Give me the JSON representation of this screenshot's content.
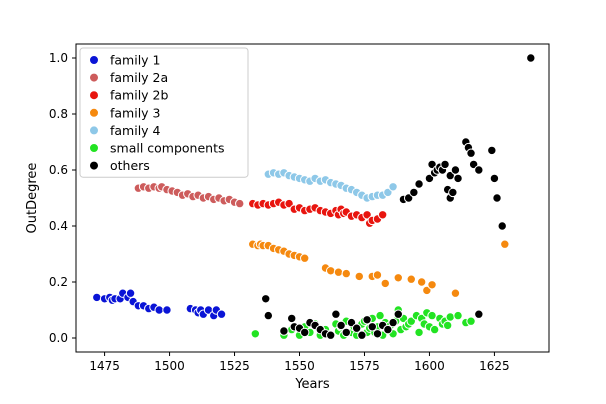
{
  "chart_data": {
    "type": "scatter",
    "xlabel": "Years",
    "ylabel": "OutDegree",
    "xlim": [
      1464,
      1646
    ],
    "ylim": [
      -0.05,
      1.05
    ],
    "xticks": [
      1475,
      1500,
      1525,
      1550,
      1575,
      1600,
      1625
    ],
    "yticks": [
      0.0,
      0.2,
      0.4,
      0.6,
      0.8,
      1.0
    ],
    "xtick_labels": [
      "1475",
      "1500",
      "1525",
      "1550",
      "1575",
      "1600",
      "1625"
    ],
    "ytick_labels": [
      "0.0",
      "0.2",
      "0.4",
      "0.6",
      "0.8",
      "1.0"
    ],
    "grid": false,
    "legend_position": "top-left",
    "series": [
      {
        "name": "family 1",
        "color": "#0a14d6",
        "points": [
          [
            1472,
            0.145
          ],
          [
            1475,
            0.14
          ],
          [
            1477,
            0.145
          ],
          [
            1478,
            0.135
          ],
          [
            1479,
            0.14
          ],
          [
            1481,
            0.14
          ],
          [
            1482,
            0.16
          ],
          [
            1484,
            0.145
          ],
          [
            1485,
            0.16
          ],
          [
            1486,
            0.13
          ],
          [
            1488,
            0.115
          ],
          [
            1490,
            0.115
          ],
          [
            1492,
            0.105
          ],
          [
            1494,
            0.11
          ],
          [
            1496,
            0.1
          ],
          [
            1499,
            0.1
          ],
          [
            1508,
            0.105
          ],
          [
            1510,
            0.1
          ],
          [
            1511,
            0.09
          ],
          [
            1512,
            0.1
          ],
          [
            1513,
            0.085
          ],
          [
            1515,
            0.1
          ],
          [
            1517,
            0.08
          ],
          [
            1518,
            0.1
          ],
          [
            1520,
            0.085
          ]
        ]
      },
      {
        "name": "family 2a",
        "color": "#cd5c5c",
        "points": [
          [
            1488,
            0.535
          ],
          [
            1490,
            0.54
          ],
          [
            1492,
            0.535
          ],
          [
            1494,
            0.54
          ],
          [
            1496,
            0.535
          ],
          [
            1497,
            0.54
          ],
          [
            1499,
            0.53
          ],
          [
            1501,
            0.525
          ],
          [
            1503,
            0.52
          ],
          [
            1505,
            0.51
          ],
          [
            1507,
            0.515
          ],
          [
            1509,
            0.505
          ],
          [
            1511,
            0.51
          ],
          [
            1513,
            0.5
          ],
          [
            1515,
            0.505
          ],
          [
            1517,
            0.495
          ],
          [
            1519,
            0.5
          ],
          [
            1521,
            0.49
          ],
          [
            1523,
            0.495
          ],
          [
            1525,
            0.485
          ],
          [
            1527,
            0.48
          ]
        ]
      },
      {
        "name": "family 2b",
        "color": "#e8150f",
        "points": [
          [
            1532,
            0.48
          ],
          [
            1534,
            0.475
          ],
          [
            1536,
            0.48
          ],
          [
            1538,
            0.475
          ],
          [
            1540,
            0.48
          ],
          [
            1542,
            0.485
          ],
          [
            1544,
            0.475
          ],
          [
            1546,
            0.48
          ],
          [
            1548,
            0.46
          ],
          [
            1550,
            0.465
          ],
          [
            1552,
            0.455
          ],
          [
            1554,
            0.46
          ],
          [
            1556,
            0.465
          ],
          [
            1558,
            0.455
          ],
          [
            1560,
            0.45
          ],
          [
            1562,
            0.445
          ],
          [
            1564,
            0.455
          ],
          [
            1565,
            0.44
          ],
          [
            1566,
            0.46
          ],
          [
            1567,
            0.445
          ],
          [
            1568,
            0.45
          ],
          [
            1570,
            0.435
          ],
          [
            1572,
            0.44
          ],
          [
            1574,
            0.43
          ],
          [
            1576,
            0.44
          ],
          [
            1577,
            0.41
          ],
          [
            1578,
            0.42
          ],
          [
            1580,
            0.425
          ],
          [
            1582,
            0.44
          ]
        ]
      },
      {
        "name": "family 3",
        "color": "#f5890f",
        "points": [
          [
            1532,
            0.335
          ],
          [
            1534,
            0.33
          ],
          [
            1535,
            0.335
          ],
          [
            1536,
            0.33
          ],
          [
            1538,
            0.33
          ],
          [
            1540,
            0.32
          ],
          [
            1542,
            0.315
          ],
          [
            1544,
            0.31
          ],
          [
            1546,
            0.3
          ],
          [
            1548,
            0.295
          ],
          [
            1550,
            0.29
          ],
          [
            1552,
            0.285
          ],
          [
            1560,
            0.25
          ],
          [
            1562,
            0.24
          ],
          [
            1565,
            0.235
          ],
          [
            1568,
            0.23
          ],
          [
            1573,
            0.22
          ],
          [
            1578,
            0.22
          ],
          [
            1580,
            0.225
          ],
          [
            1583,
            0.195
          ],
          [
            1588,
            0.215
          ],
          [
            1593,
            0.21
          ],
          [
            1597,
            0.2
          ],
          [
            1599,
            0.17
          ],
          [
            1601,
            0.19
          ],
          [
            1610,
            0.16
          ],
          [
            1629,
            0.335
          ]
        ]
      },
      {
        "name": "family 4",
        "color": "#8ec8e8",
        "points": [
          [
            1538,
            0.585
          ],
          [
            1540,
            0.59
          ],
          [
            1542,
            0.585
          ],
          [
            1544,
            0.59
          ],
          [
            1546,
            0.58
          ],
          [
            1548,
            0.575
          ],
          [
            1550,
            0.57
          ],
          [
            1552,
            0.565
          ],
          [
            1554,
            0.56
          ],
          [
            1556,
            0.57
          ],
          [
            1558,
            0.56
          ],
          [
            1560,
            0.565
          ],
          [
            1562,
            0.555
          ],
          [
            1564,
            0.55
          ],
          [
            1566,
            0.545
          ],
          [
            1568,
            0.535
          ],
          [
            1570,
            0.53
          ],
          [
            1572,
            0.52
          ],
          [
            1574,
            0.51
          ],
          [
            1576,
            0.5
          ],
          [
            1578,
            0.505
          ],
          [
            1580,
            0.51
          ],
          [
            1582,
            0.51
          ],
          [
            1584,
            0.52
          ],
          [
            1586,
            0.54
          ]
        ]
      },
      {
        "name": "small components",
        "color": "#22e322",
        "points": [
          [
            1533,
            0.015
          ],
          [
            1544,
            0.01
          ],
          [
            1547,
            0.03
          ],
          [
            1550,
            0.01
          ],
          [
            1552,
            0.04
          ],
          [
            1554,
            0.02
          ],
          [
            1556,
            0.05
          ],
          [
            1558,
            0.01
          ],
          [
            1560,
            0.03
          ],
          [
            1562,
            0.01
          ],
          [
            1564,
            0.05
          ],
          [
            1565,
            0.025
          ],
          [
            1566,
            0.04
          ],
          [
            1567,
            0.01
          ],
          [
            1568,
            0.06
          ],
          [
            1570,
            0.02
          ],
          [
            1571,
            0.04
          ],
          [
            1572,
            0.01
          ],
          [
            1574,
            0.05
          ],
          [
            1575,
            0.06
          ],
          [
            1576,
            0.02
          ],
          [
            1577,
            0.035
          ],
          [
            1578,
            0.07
          ],
          [
            1579,
            0.02
          ],
          [
            1580,
            0.04
          ],
          [
            1581,
            0.08
          ],
          [
            1582,
            0.01
          ],
          [
            1583,
            0.055
          ],
          [
            1584,
            0.03
          ],
          [
            1585,
            0.045
          ],
          [
            1586,
            0.015
          ],
          [
            1587,
            0.06
          ],
          [
            1588,
            0.1
          ],
          [
            1589,
            0.03
          ],
          [
            1590,
            0.07
          ],
          [
            1591,
            0.04
          ],
          [
            1592,
            0.05
          ],
          [
            1593,
            0.06
          ],
          [
            1595,
            0.08
          ],
          [
            1596,
            0.02
          ],
          [
            1597,
            0.07
          ],
          [
            1598,
            0.05
          ],
          [
            1599,
            0.09
          ],
          [
            1600,
            0.04
          ],
          [
            1601,
            0.08
          ],
          [
            1602,
            0.03
          ],
          [
            1604,
            0.07
          ],
          [
            1605,
            0.05
          ],
          [
            1606,
            0.06
          ],
          [
            1607,
            0.045
          ],
          [
            1608,
            0.075
          ],
          [
            1611,
            0.08
          ],
          [
            1614,
            0.055
          ],
          [
            1616,
            0.06
          ]
        ]
      },
      {
        "name": "others",
        "color": "#000000",
        "points": [
          [
            1537,
            0.14
          ],
          [
            1538,
            0.08
          ],
          [
            1544,
            0.025
          ],
          [
            1547,
            0.07
          ],
          [
            1548,
            0.04
          ],
          [
            1550,
            0.035
          ],
          [
            1552,
            0.02
          ],
          [
            1554,
            0.055
          ],
          [
            1556,
            0.045
          ],
          [
            1558,
            0.03
          ],
          [
            1560,
            0.015
          ],
          [
            1562,
            0.01
          ],
          [
            1564,
            0.085
          ],
          [
            1566,
            0.045
          ],
          [
            1568,
            0.02
          ],
          [
            1570,
            0.055
          ],
          [
            1572,
            0.035
          ],
          [
            1574,
            0.01
          ],
          [
            1576,
            0.065
          ],
          [
            1578,
            0.04
          ],
          [
            1580,
            0.015
          ],
          [
            1582,
            0.045
          ],
          [
            1584,
            0.03
          ],
          [
            1586,
            0.055
          ],
          [
            1588,
            0.085
          ],
          [
            1590,
            0.495
          ],
          [
            1592,
            0.5
          ],
          [
            1594,
            0.52
          ],
          [
            1596,
            0.55
          ],
          [
            1600,
            0.57
          ],
          [
            1601,
            0.62
          ],
          [
            1602,
            0.59
          ],
          [
            1603,
            0.6
          ],
          [
            1604,
            0.61
          ],
          [
            1605,
            0.6
          ],
          [
            1606,
            0.62
          ],
          [
            1607,
            0.53
          ],
          [
            1608,
            0.5
          ],
          [
            1608,
            0.58
          ],
          [
            1609,
            0.52
          ],
          [
            1610,
            0.6
          ],
          [
            1611,
            0.57
          ],
          [
            1614,
            0.7
          ],
          [
            1615,
            0.68
          ],
          [
            1616,
            0.66
          ],
          [
            1617,
            0.62
          ],
          [
            1619,
            0.6
          ],
          [
            1624,
            0.67
          ],
          [
            1625,
            0.57
          ],
          [
            1626,
            0.5
          ],
          [
            1628,
            0.4
          ],
          [
            1619,
            0.085
          ],
          [
            1639,
            1.0
          ]
        ]
      }
    ]
  }
}
